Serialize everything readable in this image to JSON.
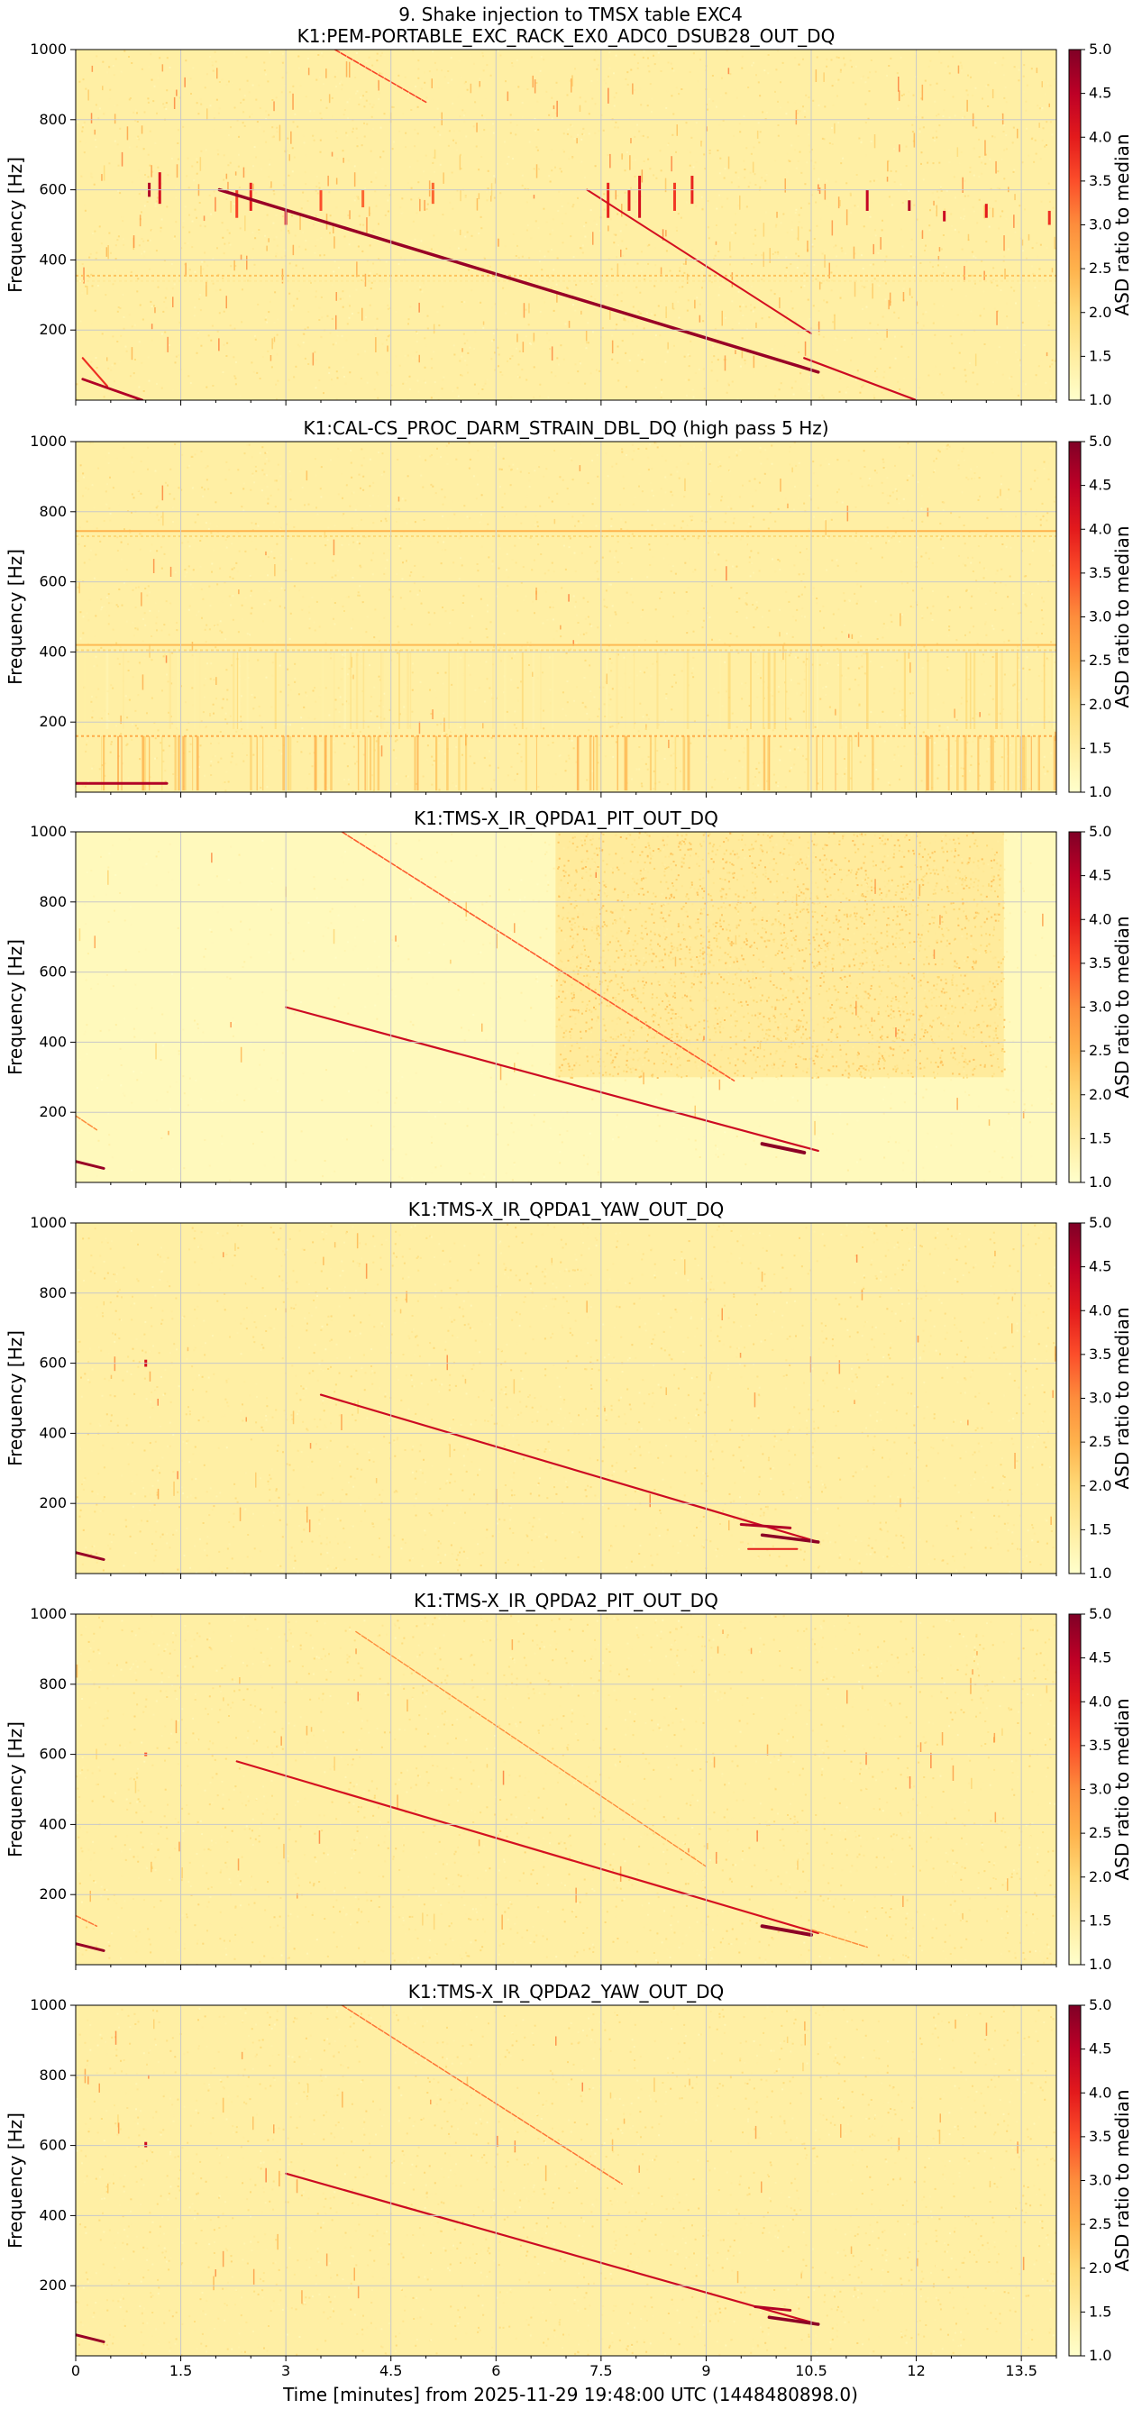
{
  "figure": {
    "suptitle": "9. Shake injection to TMSX table EXC4",
    "xlabel": "Time [minutes] from 2025-11-29 19:48:00 UTC (1448480898.0)"
  },
  "colors": {
    "background": "#ffffff",
    "grid": "#c8c8c8",
    "colormap_YlOrRd": [
      "#ffffcc",
      "#ffeda0",
      "#fed976",
      "#feb24c",
      "#fd8d3c",
      "#fc4e2a",
      "#e31a1c",
      "#bd0026",
      "#800026"
    ]
  },
  "chart_data": [
    {
      "type": "heatmap",
      "title": "K1:PEM-PORTABLE_EXC_RACK_EX0_ADC0_DSUB28_OUT_DQ",
      "xlabel": "",
      "ylabel": "Frequency [Hz]",
      "xlim": [
        0,
        14
      ],
      "ylim": [
        0,
        1000
      ],
      "xticks": [
        "0",
        "1.5",
        "3",
        "4.5",
        "6",
        "7.5",
        "9",
        "10.5",
        "12",
        "13.5"
      ],
      "yticks": [
        "200",
        "400",
        "600",
        "800",
        "1000"
      ],
      "colorbar": {
        "label": "ASD ratio to median",
        "range": [
          1.0,
          5.0
        ],
        "ticks": [
          "1.0",
          "1.5",
          "2.0",
          "2.5",
          "3.0",
          "3.5",
          "4.0",
          "4.5",
          "5.0"
        ]
      },
      "grid": true,
      "features": {
        "sweeps": [
          {
            "x0": 0.1,
            "f0": 120,
            "x1": 0.45,
            "f1": 40,
            "w": 2.2,
            "v": 3.8
          },
          {
            "x0": 0.1,
            "f0": 60,
            "x1": 0.95,
            "f1": 0,
            "w": 2.8,
            "v": 4.6
          },
          {
            "x0": 2.05,
            "f0": 600,
            "x1": 10.6,
            "f1": 80,
            "w": 3.5,
            "v": 4.8
          },
          {
            "x0": 3.7,
            "f0": 1000,
            "x1": 5.0,
            "f1": 850,
            "w": 1.6,
            "v": 3.6
          },
          {
            "x0": 7.3,
            "f0": 600,
            "x1": 10.5,
            "f1": 190,
            "w": 2.0,
            "v": 4.2
          },
          {
            "x0": 10.4,
            "f0": 120,
            "x1": 12.0,
            "f1": 0,
            "w": 2.2,
            "v": 4.3
          }
        ],
        "hlines": [
          {
            "f": 355,
            "v": 2.3,
            "dash": true
          },
          {
            "f": 340,
            "v": 1.6,
            "dash": true
          }
        ],
        "vbursts": [
          {
            "x": 1.05,
            "f0": 580,
            "f1": 620,
            "v": 4.6
          },
          {
            "x": 1.2,
            "f0": 560,
            "f1": 650,
            "v": 4.2
          },
          {
            "x": 2.3,
            "f0": 520,
            "f1": 600,
            "v": 3.6
          },
          {
            "x": 2.5,
            "f0": 540,
            "f1": 620,
            "v": 3.9
          },
          {
            "x": 3.0,
            "f0": 500,
            "f1": 540,
            "v": 4.1
          },
          {
            "x": 3.5,
            "f0": 540,
            "f1": 600,
            "v": 3.5
          },
          {
            "x": 4.1,
            "f0": 550,
            "f1": 600,
            "v": 3.3
          },
          {
            "x": 5.1,
            "f0": 560,
            "f1": 620,
            "v": 3.3
          },
          {
            "x": 7.6,
            "f0": 520,
            "f1": 620,
            "v": 3.9
          },
          {
            "x": 7.9,
            "f0": 540,
            "f1": 600,
            "v": 4.0
          },
          {
            "x": 8.05,
            "f0": 520,
            "f1": 640,
            "v": 4.2
          },
          {
            "x": 8.55,
            "f0": 540,
            "f1": 620,
            "v": 3.7
          },
          {
            "x": 8.8,
            "f0": 560,
            "f1": 640,
            "v": 3.9
          },
          {
            "x": 11.3,
            "f0": 540,
            "f1": 600,
            "v": 4.4
          },
          {
            "x": 11.9,
            "f0": 540,
            "f1": 570,
            "v": 4.6
          },
          {
            "x": 12.4,
            "f0": 510,
            "f1": 540,
            "v": 4.3
          },
          {
            "x": 13.0,
            "f0": 520,
            "f1": 560,
            "v": 4.0
          },
          {
            "x": 13.9,
            "f0": 500,
            "f1": 540,
            "v": 3.8
          }
        ],
        "noise_bursts": 260
      }
    },
    {
      "type": "heatmap",
      "title": "K1:CAL-CS_PROC_DARM_STRAIN_DBL_DQ (high pass 5 Hz)",
      "xlabel": "",
      "ylabel": "Frequency [Hz]",
      "xlim": [
        0,
        14
      ],
      "ylim": [
        0,
        1000
      ],
      "xticks": [
        "0",
        "1.5",
        "3",
        "4.5",
        "6",
        "7.5",
        "9",
        "10.5",
        "12",
        "13.5"
      ],
      "yticks": [
        "200",
        "400",
        "600",
        "800",
        "1000"
      ],
      "colorbar": {
        "label": "ASD ratio to median",
        "range": [
          1.0,
          5.0
        ],
        "ticks": [
          "1.0",
          "1.5",
          "2.0",
          "2.5",
          "3.0",
          "3.5",
          "4.0",
          "4.5",
          "5.0"
        ]
      },
      "grid": true,
      "features": {
        "sweeps": [
          {
            "x0": 0.0,
            "f0": 25,
            "x1": 1.3,
            "f1": 25,
            "w": 3.0,
            "v": 4.6
          }
        ],
        "hlines": [
          {
            "f": 745,
            "v": 2.5,
            "dash": false
          },
          {
            "f": 730,
            "v": 2.0,
            "dash": true
          },
          {
            "f": 420,
            "v": 2.4,
            "dash": false
          },
          {
            "f": 405,
            "v": 2.0,
            "dash": true
          },
          {
            "f": 160,
            "v": 2.6,
            "dash": true
          }
        ],
        "vbands": [
          {
            "f0": 5,
            "f1": 160,
            "v": 2.3,
            "count": 90
          },
          {
            "f0": 180,
            "f1": 400,
            "v": 1.7,
            "count": 70
          }
        ],
        "noise_bursts": 60
      }
    },
    {
      "type": "heatmap",
      "title": "K1:TMS-X_IR_QPDA1_PIT_OUT_DQ",
      "xlabel": "",
      "ylabel": "Frequency [Hz]",
      "xlim": [
        0,
        14
      ],
      "ylim": [
        0,
        1000
      ],
      "xticks": [
        "0",
        "1.5",
        "3",
        "4.5",
        "6",
        "7.5",
        "9",
        "10.5",
        "12",
        "13.5"
      ],
      "yticks": [
        "200",
        "400",
        "600",
        "800",
        "1000"
      ],
      "colorbar": {
        "label": "ASD ratio to median",
        "range": [
          1.0,
          5.0
        ],
        "ticks": [
          "1.0",
          "1.5",
          "2.0",
          "2.5",
          "3.0",
          "3.5",
          "4.0",
          "4.5",
          "5.0"
        ]
      },
      "grid": true,
      "features": {
        "quiet_base": true,
        "noisy_region": {
          "x0": 6.85,
          "x1": 13.25,
          "f0": 300,
          "f1": 1000,
          "v": 1.8
        },
        "sweeps": [
          {
            "x0": 0.0,
            "f0": 60,
            "x1": 0.4,
            "f1": 40,
            "w": 3.0,
            "v": 4.8
          },
          {
            "x0": 3.8,
            "f0": 1000,
            "x1": 9.4,
            "f1": 290,
            "w": 1.6,
            "v": 3.4
          },
          {
            "x0": 3.0,
            "f0": 500,
            "x1": 10.6,
            "f1": 90,
            "w": 2.2,
            "v": 4.3
          },
          {
            "x0": 9.8,
            "f0": 110,
            "x1": 10.4,
            "f1": 85,
            "w": 4.0,
            "v": 4.9
          },
          {
            "x0": 0.0,
            "f0": 190,
            "x1": 0.3,
            "f1": 150,
            "w": 1.5,
            "v": 3.0
          }
        ],
        "hlines": [],
        "noise_bursts": 40
      }
    },
    {
      "type": "heatmap",
      "title": "K1:TMS-X_IR_QPDA1_YAW_OUT_DQ",
      "xlabel": "",
      "ylabel": "Frequency [Hz]",
      "xlim": [
        0,
        14
      ],
      "ylim": [
        0,
        1000
      ],
      "xticks": [
        "0",
        "1.5",
        "3",
        "4.5",
        "6",
        "7.5",
        "9",
        "10.5",
        "12",
        "13.5"
      ],
      "yticks": [
        "200",
        "400",
        "600",
        "800",
        "1000"
      ],
      "colorbar": {
        "label": "ASD ratio to median",
        "range": [
          1.0,
          5.0
        ],
        "ticks": [
          "1.0",
          "1.5",
          "2.0",
          "2.5",
          "3.0",
          "3.5",
          "4.0",
          "4.5",
          "5.0"
        ]
      },
      "grid": true,
      "features": {
        "sweeps": [
          {
            "x0": 0.0,
            "f0": 60,
            "x1": 0.4,
            "f1": 40,
            "w": 3.0,
            "v": 4.8
          },
          {
            "x0": 3.5,
            "f0": 510,
            "x1": 10.6,
            "f1": 90,
            "w": 2.2,
            "v": 4.3
          },
          {
            "x0": 9.5,
            "f0": 140,
            "x1": 10.2,
            "f1": 130,
            "w": 3.0,
            "v": 4.6
          },
          {
            "x0": 9.8,
            "f0": 110,
            "x1": 10.6,
            "f1": 90,
            "w": 3.5,
            "v": 4.9
          },
          {
            "x0": 9.6,
            "f0": 70,
            "x1": 10.3,
            "f1": 70,
            "w": 2.0,
            "v": 4.0
          }
        ],
        "vbursts": [
          {
            "x": 1.0,
            "f0": 590,
            "f1": 610,
            "v": 4.2
          }
        ],
        "hlines": [],
        "noise_bursts": 60
      }
    },
    {
      "type": "heatmap",
      "title": "K1:TMS-X_IR_QPDA2_PIT_OUT_DQ",
      "xlabel": "",
      "ylabel": "Frequency [Hz]",
      "xlim": [
        0,
        14
      ],
      "ylim": [
        0,
        1000
      ],
      "xticks": [
        "0",
        "1.5",
        "3",
        "4.5",
        "6",
        "7.5",
        "9",
        "10.5",
        "12",
        "13.5"
      ],
      "yticks": [
        "200",
        "400",
        "600",
        "800",
        "1000"
      ],
      "colorbar": {
        "label": "ASD ratio to median",
        "range": [
          1.0,
          5.0
        ],
        "ticks": [
          "1.0",
          "1.5",
          "2.0",
          "2.5",
          "3.0",
          "3.5",
          "4.0",
          "4.5",
          "5.0"
        ]
      },
      "grid": true,
      "features": {
        "sweeps": [
          {
            "x0": 0.0,
            "f0": 60,
            "x1": 0.4,
            "f1": 40,
            "w": 3.0,
            "v": 4.8
          },
          {
            "x0": 0.0,
            "f0": 140,
            "x1": 0.3,
            "f1": 110,
            "w": 1.5,
            "v": 3.2
          },
          {
            "x0": 4.0,
            "f0": 950,
            "x1": 9.0,
            "f1": 280,
            "w": 1.4,
            "v": 3.0
          },
          {
            "x0": 2.3,
            "f0": 580,
            "x1": 10.6,
            "f1": 90,
            "w": 2.2,
            "v": 4.2
          },
          {
            "x0": 9.8,
            "f0": 110,
            "x1": 10.5,
            "f1": 85,
            "w": 4.0,
            "v": 4.9
          },
          {
            "x0": 10.5,
            "f0": 100,
            "x1": 11.3,
            "f1": 50,
            "w": 1.5,
            "v": 3.0
          }
        ],
        "vbursts": [
          {
            "x": 1.0,
            "f0": 595,
            "f1": 605,
            "v": 3.5
          }
        ],
        "hlines": [],
        "noise_bursts": 60
      }
    },
    {
      "type": "heatmap",
      "title": "K1:TMS-X_IR_QPDA2_YAW_OUT_DQ",
      "xlabel": "Time [minutes] from 2025-11-29 19:48:00 UTC (1448480898.0)",
      "ylabel": "Frequency [Hz]",
      "xlim": [
        0,
        14
      ],
      "ylim": [
        0,
        1000
      ],
      "xticks": [
        "0",
        "1.5",
        "3",
        "4.5",
        "6",
        "7.5",
        "9",
        "10.5",
        "12",
        "13.5"
      ],
      "yticks": [
        "200",
        "400",
        "600",
        "800",
        "1000"
      ],
      "colorbar": {
        "label": "ASD ratio to median",
        "range": [
          1.0,
          5.0
        ],
        "ticks": [
          "1.0",
          "1.5",
          "2.0",
          "2.5",
          "3.0",
          "3.5",
          "4.0",
          "4.5",
          "5.0"
        ]
      },
      "grid": true,
      "features": {
        "sweeps": [
          {
            "x0": 0.0,
            "f0": 60,
            "x1": 0.4,
            "f1": 40,
            "w": 3.0,
            "v": 4.8
          },
          {
            "x0": 3.8,
            "f0": 1000,
            "x1": 7.8,
            "f1": 490,
            "w": 1.5,
            "v": 3.2
          },
          {
            "x0": 3.0,
            "f0": 520,
            "x1": 10.6,
            "f1": 90,
            "w": 2.2,
            "v": 4.3
          },
          {
            "x0": 9.7,
            "f0": 140,
            "x1": 10.2,
            "f1": 130,
            "w": 3.0,
            "v": 4.6
          },
          {
            "x0": 9.9,
            "f0": 110,
            "x1": 10.6,
            "f1": 90,
            "w": 3.5,
            "v": 4.9
          }
        ],
        "vbursts": [
          {
            "x": 1.0,
            "f0": 595,
            "f1": 610,
            "v": 4.3
          }
        ],
        "hlines": [],
        "noise_bursts": 60
      }
    }
  ]
}
